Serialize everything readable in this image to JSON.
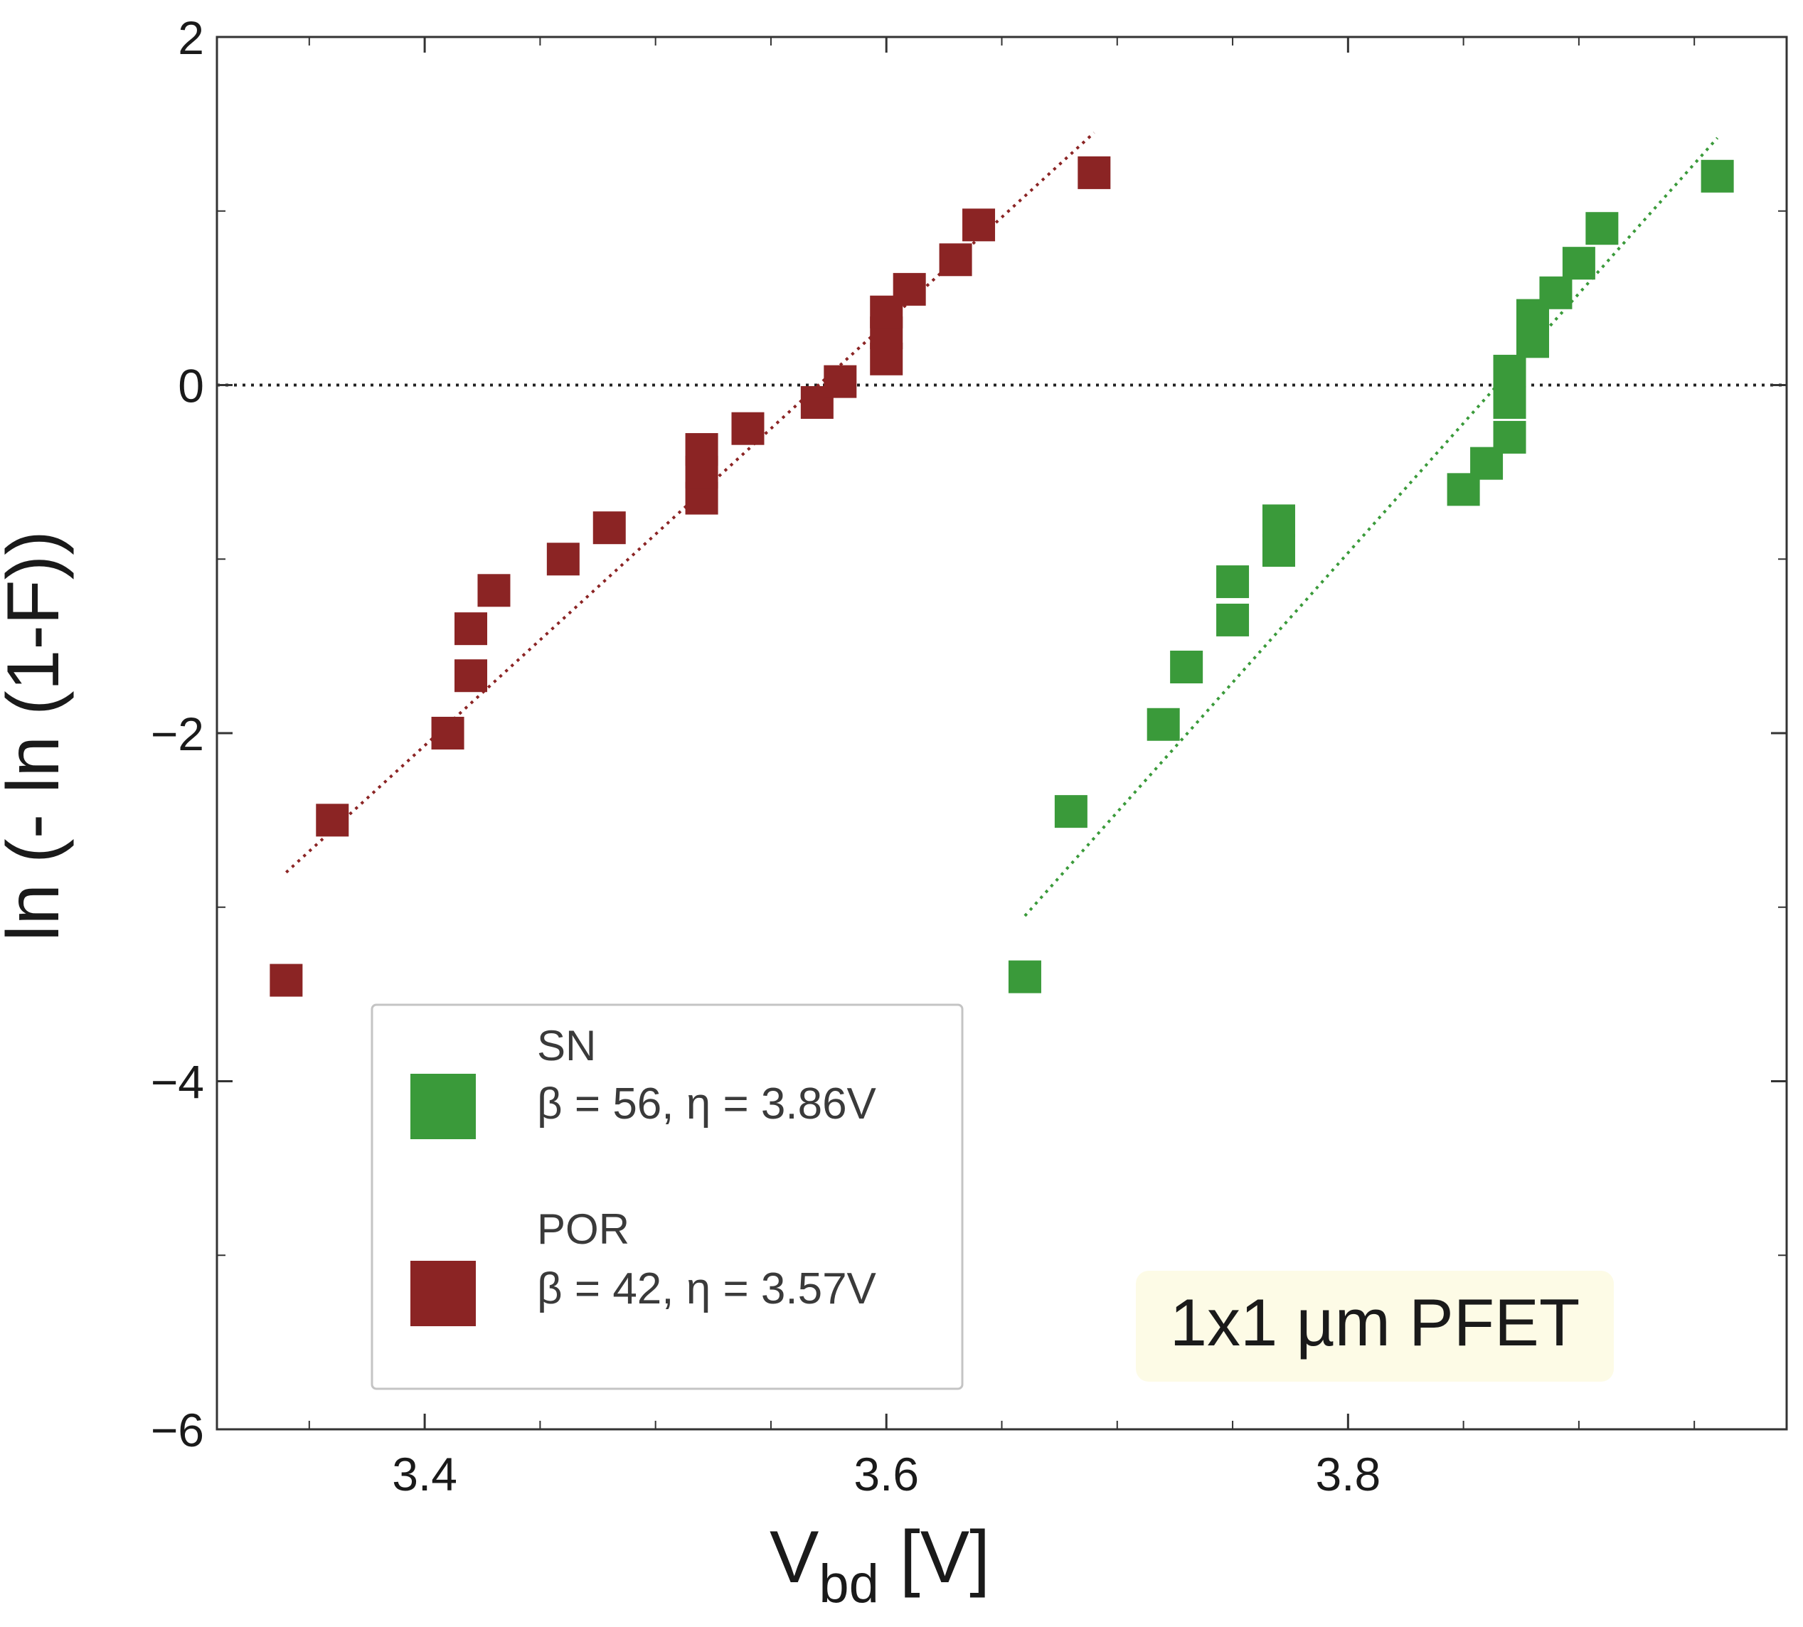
{
  "chart_data": {
    "type": "scatter",
    "title": "",
    "xlabel": "V",
    "xlabel_sub": "bd",
    "xlabel_unit": " [V]",
    "ylabel": "ln (- ln (1-F))",
    "xlim": [
      3.31,
      3.99
    ],
    "ylim": [
      -6,
      2
    ],
    "x_ticks": [
      3.4,
      3.6,
      3.8
    ],
    "x_tick_labels": [
      "3.4",
      "3.6",
      "3.8"
    ],
    "y_ticks": [
      2,
      0,
      -2,
      -4,
      -6
    ],
    "y_tick_labels": [
      "2",
      "0",
      "−2",
      "−4",
      "−6"
    ],
    "reference_line": {
      "y": 0,
      "style": "dotted",
      "color": "#222222"
    },
    "series": [
      {
        "name": "SN",
        "params": "β = 56, η = 3.86V",
        "color": "#3a9a3a",
        "x": [
          3.66,
          3.68,
          3.72,
          3.73,
          3.75,
          3.75,
          3.77,
          3.77,
          3.85,
          3.86,
          3.87,
          3.87,
          3.87,
          3.88,
          3.88,
          3.89,
          3.9,
          3.91,
          3.96
        ],
        "y": [
          -3.4,
          -2.45,
          -1.95,
          -1.62,
          -1.35,
          -1.13,
          -0.95,
          -0.78,
          -0.6,
          -0.45,
          -0.3,
          -0.1,
          0.08,
          0.25,
          0.4,
          0.53,
          0.7,
          0.9,
          1.2
        ],
        "fit": {
          "x": [
            3.66,
            3.96
          ],
          "y": [
            -3.05,
            1.42
          ]
        }
      },
      {
        "name": "POR",
        "params": "β = 42, η = 3.57V",
        "color": "#8b2424",
        "x": [
          3.34,
          3.36,
          3.41,
          3.42,
          3.42,
          3.43,
          3.46,
          3.48,
          3.52,
          3.52,
          3.52,
          3.54,
          3.57,
          3.58,
          3.6,
          3.6,
          3.6,
          3.61,
          3.63,
          3.64,
          3.69
        ],
        "y": [
          -3.42,
          -2.5,
          -2.0,
          -1.67,
          -1.4,
          -1.18,
          -1.0,
          -0.82,
          -0.65,
          -0.5,
          -0.37,
          -0.25,
          -0.1,
          0.02,
          0.15,
          0.3,
          0.42,
          0.55,
          0.72,
          0.92,
          1.22
        ],
        "fit": {
          "x": [
            3.34,
            3.69
          ],
          "y": [
            -2.8,
            1.45
          ]
        }
      }
    ],
    "legend_position": "lower-left",
    "annotation": "1x1 µm PFET"
  }
}
